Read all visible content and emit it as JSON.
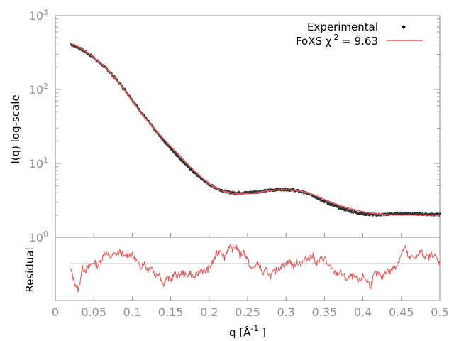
{
  "chart_data": [
    {
      "type": "scatter",
      "panel": "main",
      "xlim": [
        0,
        0.5
      ],
      "ylim": [
        1,
        1000
      ],
      "yscale": "log",
      "ylabel": "I(q) log-scale",
      "y_ticks": [
        {
          "value": 1,
          "base": "10",
          "exp": "0"
        },
        {
          "value": 10,
          "base": "10",
          "exp": "1"
        },
        {
          "value": 100,
          "base": "10",
          "exp": "2"
        },
        {
          "value": 1000,
          "base": "10",
          "exp": "3"
        }
      ],
      "legend": {
        "placement": "top-right",
        "items": [
          {
            "label": "Experimental",
            "style": "points",
            "color": "#000000"
          },
          {
            "label_main": "FoXS χ",
            "label_sup": "2",
            "label_rest": " = 9.63",
            "style": "line",
            "color": "#e05a5a"
          }
        ]
      },
      "series": [
        {
          "name": "Experimental",
          "color": "#333333",
          "x": [
            0.02,
            0.03,
            0.04,
            0.05,
            0.06,
            0.07,
            0.08,
            0.09,
            0.1,
            0.11,
            0.12,
            0.13,
            0.14,
            0.15,
            0.16,
            0.17,
            0.18,
            0.19,
            0.2,
            0.21,
            0.22,
            0.23,
            0.24,
            0.25,
            0.26,
            0.27,
            0.28,
            0.29,
            0.3,
            0.31,
            0.32,
            0.33,
            0.34,
            0.35,
            0.36,
            0.37,
            0.38,
            0.39,
            0.4,
            0.41,
            0.42,
            0.43,
            0.44,
            0.45,
            0.46,
            0.47,
            0.48,
            0.49,
            0.5
          ],
          "y": [
            410,
            370,
            320,
            270,
            220,
            175,
            135,
            100,
            72,
            52,
            38,
            28,
            21,
            16,
            12.3,
            9.6,
            7.6,
            6.2,
            5.2,
            4.6,
            4.2,
            4.0,
            4.0,
            4.0,
            4.1,
            4.2,
            4.35,
            4.45,
            4.45,
            4.35,
            4.15,
            3.85,
            3.45,
            3.05,
            2.75,
            2.5,
            2.32,
            2.18,
            2.08,
            2.03,
            2.02,
            2.04,
            2.08,
            2.1,
            2.1,
            2.07,
            2.05,
            2.04,
            2.03
          ]
        },
        {
          "name": "FoXS χ2 = 9.63",
          "color": "#e05a5a",
          "x": [
            0.02,
            0.03,
            0.04,
            0.05,
            0.06,
            0.07,
            0.08,
            0.09,
            0.1,
            0.11,
            0.12,
            0.13,
            0.14,
            0.15,
            0.16,
            0.17,
            0.18,
            0.19,
            0.2,
            0.21,
            0.22,
            0.23,
            0.24,
            0.25,
            0.26,
            0.27,
            0.28,
            0.29,
            0.3,
            0.31,
            0.32,
            0.33,
            0.34,
            0.35,
            0.36,
            0.37,
            0.38,
            0.39,
            0.4,
            0.41,
            0.42,
            0.43,
            0.44,
            0.45,
            0.46,
            0.47,
            0.48,
            0.49,
            0.5
          ],
          "y": [
            420,
            380,
            325,
            272,
            222,
            176,
            134,
            98,
            70,
            51,
            37.5,
            28.5,
            22,
            17,
            13.3,
            10.3,
            8.1,
            6.5,
            5.3,
            4.6,
            4.2,
            3.95,
            3.85,
            3.9,
            4.0,
            4.15,
            4.3,
            4.4,
            4.4,
            4.35,
            4.2,
            3.95,
            3.6,
            3.25,
            2.95,
            2.7,
            2.5,
            2.35,
            2.22,
            2.13,
            2.07,
            2.03,
            2.01,
            2.0,
            2.0,
            2.0,
            2.0,
            2.0,
            2.0
          ]
        }
      ]
    },
    {
      "type": "line",
      "panel": "residual",
      "xlabel_main": "q [Å",
      "xlabel_sup": "-1",
      "xlabel_end": " ]",
      "ylabel": "Residual",
      "xlim": [
        0,
        0.5
      ],
      "ylim": [
        -1.8,
        1.3
      ],
      "x_ticks": [
        "0",
        "0.05",
        "0.1",
        "0.15",
        "0.2",
        "0.25",
        "0.3",
        "0.35",
        "0.4",
        "0.45",
        "0.5"
      ],
      "reference_line": 0,
      "series": [
        {
          "name": "Residual",
          "color": "#e05a5a",
          "x": [
            0.02,
            0.025,
            0.03,
            0.035,
            0.04,
            0.045,
            0.05,
            0.055,
            0.06,
            0.065,
            0.07,
            0.075,
            0.08,
            0.085,
            0.09,
            0.095,
            0.1,
            0.105,
            0.11,
            0.115,
            0.12,
            0.125,
            0.13,
            0.135,
            0.14,
            0.145,
            0.15,
            0.155,
            0.16,
            0.165,
            0.17,
            0.175,
            0.18,
            0.185,
            0.19,
            0.195,
            0.2,
            0.205,
            0.21,
            0.215,
            0.22,
            0.225,
            0.23,
            0.235,
            0.24,
            0.245,
            0.25,
            0.255,
            0.26,
            0.265,
            0.27,
            0.275,
            0.28,
            0.285,
            0.29,
            0.295,
            0.3,
            0.305,
            0.31,
            0.315,
            0.32,
            0.325,
            0.33,
            0.335,
            0.34,
            0.345,
            0.35,
            0.355,
            0.36,
            0.365,
            0.37,
            0.375,
            0.38,
            0.385,
            0.39,
            0.395,
            0.4,
            0.405,
            0.41,
            0.415,
            0.42,
            0.425,
            0.43,
            0.435,
            0.44,
            0.445,
            0.45,
            0.455,
            0.46,
            0.465,
            0.47,
            0.475,
            0.48,
            0.485,
            0.49,
            0.495,
            0.5
          ],
          "values": [
            -0.3,
            -0.9,
            -1.3,
            -0.2,
            -0.3,
            -0.1,
            0.1,
            -0.1,
            0.2,
            0.6,
            0.3,
            0.4,
            0.5,
            0.6,
            0.3,
            0.5,
            0.4,
            0.2,
            -0.2,
            0.1,
            -0.3,
            -0.1,
            -0.6,
            -0.4,
            -1.0,
            -0.7,
            -0.8,
            -0.5,
            -0.6,
            -0.4,
            -0.6,
            -0.4,
            -0.7,
            -0.5,
            -0.3,
            -0.4,
            -0.2,
            0.1,
            0.5,
            0.7,
            0.3,
            0.8,
            0.7,
            0.9,
            0.4,
            0.6,
            0.2,
            -0.3,
            -0.1,
            0.0,
            -0.5,
            -0.3,
            -0.6,
            -0.4,
            -0.2,
            -0.1,
            0.0,
            0.1,
            -0.1,
            0.1,
            0.0,
            0.2,
            0.3,
            0.4,
            0.0,
            0.2,
            0.3,
            -0.1,
            -0.3,
            -0.5,
            -0.4,
            -0.6,
            -0.8,
            -0.6,
            -0.7,
            -0.9,
            -0.6,
            -0.8,
            -1.1,
            -0.5,
            -0.5,
            -0.7,
            -0.3,
            -0.4,
            -0.2,
            0.0,
            0.5,
            0.8,
            0.2,
            0.4,
            0.3,
            0.6,
            0.4,
            0.3,
            0.5,
            0.3,
            0.0
          ]
        }
      ]
    }
  ]
}
